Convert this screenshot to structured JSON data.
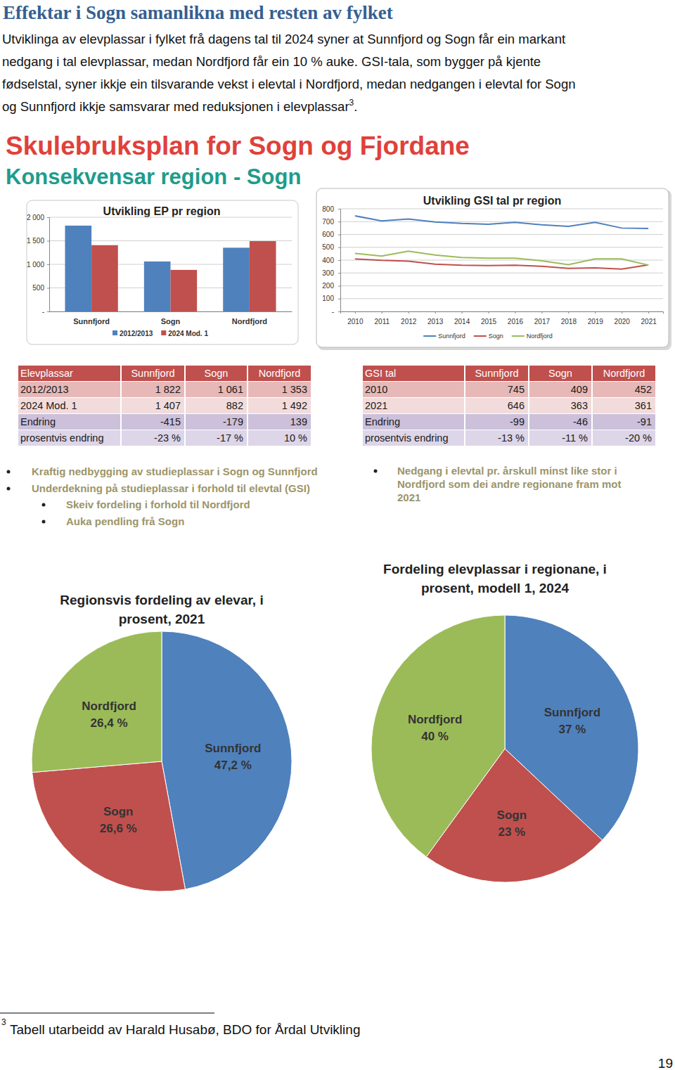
{
  "header": {
    "title": "Effektar i Sogn samanlikna med resten av fylket",
    "lines": [
      "Utviklinga av elevplassar i fylket frå dagens tal til 2024 syner at Sunnfjord og Sogn får ein markant",
      "nedgang i tal elevplassar, medan Nordfjord får ein 10 % auke.  GSI-tala, som bygger på kjente",
      "fødselstal, syner ikkje ein tilsvarande vekst i elevtal i Nordfjord, medan nedgangen i elevtal for Sogn",
      "og Sunnfjord ikkje samsvarar med reduksjonen i elevplassar"
    ],
    "note_ref": "3",
    "line_end": "."
  },
  "slide": {
    "title": "Skulebruksplan for Sogn og Fjordane",
    "subtitle": "Konsekvensar region - Sogn"
  },
  "chart_data": [
    {
      "type": "bar",
      "title": "Utvikling EP pr region",
      "categories": [
        "Sunnfjord",
        "Sogn",
        "Nordfjord"
      ],
      "series": [
        {
          "name": "2012/2013",
          "color": "#4f81bd",
          "values": [
            1822,
            1061,
            1353
          ]
        },
        {
          "name": "2024 Mod. 1",
          "color": "#c0504d",
          "values": [
            1407,
            882,
            1492
          ]
        }
      ],
      "ylim": [
        0,
        2000
      ],
      "yticks": [
        {
          "value": 0,
          "label": "-"
        },
        500,
        {
          "value": 1000,
          "label": "1 000"
        },
        {
          "value": 1500,
          "label": "1 500"
        },
        {
          "value": 2000,
          "label": "2 000"
        }
      ],
      "grid": true,
      "legend": "bottom"
    },
    {
      "type": "line",
      "title": "Utvikling GSI tal pr region",
      "categories": [
        "2010",
        "2011",
        "2012",
        "2013",
        "2014",
        "2015",
        "2016",
        "2017",
        "2018",
        "2019",
        "2020",
        "2021"
      ],
      "series": [
        {
          "name": "Sunnfjord",
          "color": "#4f81bd",
          "values": [
            745,
            705,
            720,
            697,
            686,
            680,
            695,
            675,
            663,
            695,
            650,
            646
          ]
        },
        {
          "name": "Sogn",
          "color": "#c0504d",
          "values": [
            409,
            398,
            392,
            368,
            360,
            358,
            360,
            352,
            335,
            340,
            330,
            363
          ]
        },
        {
          "name": "Nordfjord",
          "color": "#9bbb59",
          "values": [
            452,
            432,
            470,
            440,
            420,
            415,
            415,
            395,
            365,
            410,
            410,
            361
          ]
        }
      ],
      "ylim": [
        0,
        800
      ],
      "yticks": [
        {
          "value": 0,
          "label": "-"
        },
        100,
        200,
        300,
        400,
        500,
        600,
        700,
        800
      ],
      "grid": true,
      "legend": "bottom"
    },
    {
      "type": "pie",
      "title": [
        "Regionsvis fordeling av elevar, i",
        "prosent, 2021"
      ],
      "categories": [
        "Sunnfjord",
        "Sogn",
        "Nordfjord"
      ],
      "values": [
        47.2,
        26.6,
        26.4
      ],
      "value_labels": [
        "47,2 %",
        "26,6 %",
        "26,4 %"
      ],
      "colors": [
        "#4f81bd",
        "#c0504d",
        "#9bbb59"
      ],
      "data_labels": true
    },
    {
      "type": "pie",
      "title": [
        "Fordeling elevplassar i regionane, i",
        "prosent, modell 1, 2024"
      ],
      "categories": [
        "Sunnfjord",
        "Sogn",
        "Nordfjord"
      ],
      "values": [
        37,
        23,
        40
      ],
      "value_labels": [
        "37 %",
        "23 %",
        "40 %"
      ],
      "colors": [
        "#4f81bd",
        "#c0504d",
        "#9bbb59"
      ],
      "data_labels": true
    }
  ],
  "tables": [
    {
      "columns": [
        "Elevplassar",
        "Sunnfjord",
        "Sogn",
        "Nordfjord"
      ],
      "rows": [
        [
          "2012/2013",
          "1 822",
          "1 061",
          "1 353"
        ],
        [
          "2024 Mod. 1",
          "1 407",
          "882",
          "1 492"
        ],
        [
          "Endring",
          "-415",
          "-179",
          "139"
        ],
        [
          "prosentvis endring",
          "-23 %",
          "-17 %",
          "10 %"
        ]
      ]
    },
    {
      "columns": [
        "GSI tal",
        "Sunnfjord",
        "Sogn",
        "Nordfjord"
      ],
      "rows": [
        [
          "2010",
          "745",
          "409",
          "452"
        ],
        [
          "2021",
          "646",
          "363",
          "361"
        ],
        [
          "Endring",
          "-99",
          "-46",
          "-91"
        ],
        [
          "prosentvis endring",
          "-13 %",
          "-11 %",
          "-20 %"
        ]
      ]
    }
  ],
  "bullets": {
    "left": [
      "Kraftig nedbygging  av studieplassar  i Sogn og Sunnfjord",
      "Underdekning  på studieplassar  i forhold til elevtal (GSI)"
    ],
    "left_sub": [
      "Skeiv fordeling  i forhold til Nordfjord",
      "Auka pendling  frå Sogn"
    ],
    "right_lines": [
      "Nedgang  i elevtal pr. årskull  minst like stor i",
      "Nordfjord som dei andre regionane  fram mot",
      "2021"
    ]
  },
  "footnote": {
    "marker": "3",
    "text": "Tabell utarbeidd av Harald Husabø, BDO for Årdal Utvikling"
  },
  "page_number": "19"
}
